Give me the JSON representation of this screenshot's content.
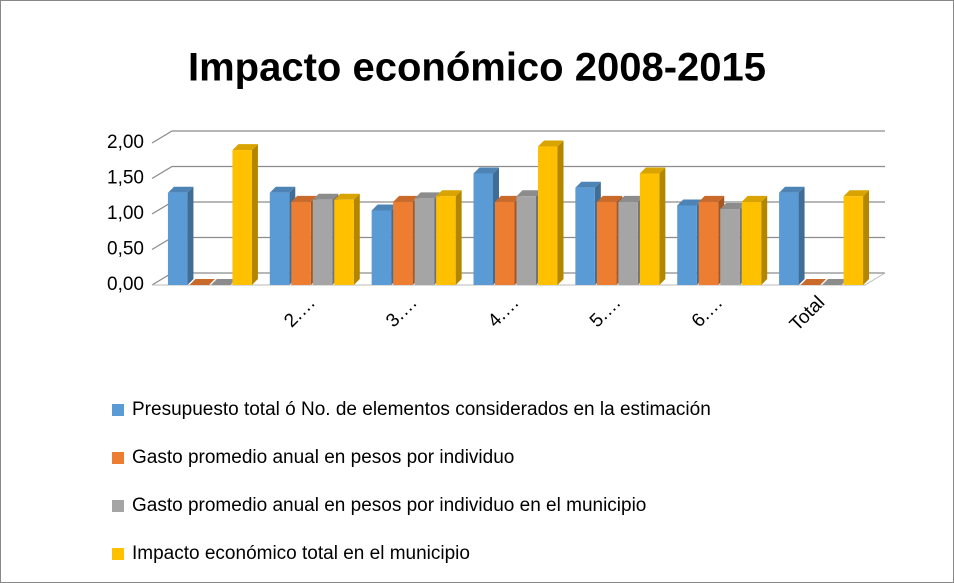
{
  "chart_data": {
    "type": "bar3d",
    "title": "Impacto económico  2008-2015",
    "categories": [
      null,
      "2.…",
      "3.…",
      "4.…",
      "5.…",
      "6.…",
      "Total"
    ],
    "series": [
      {
        "name": "Presupuesto total ó No. de elementos considerados en la estimación",
        "color": "#5b9bd5",
        "values": [
          1.3,
          1.3,
          1.05,
          1.57,
          1.37,
          1.12,
          1.3
        ]
      },
      {
        "name": "Gasto promedio anual en pesos por individuo",
        "color": "#ed7d31",
        "values": [
          0,
          1.17,
          1.17,
          1.17,
          1.17,
          1.17,
          0
        ]
      },
      {
        "name": "Gasto promedio anual en pesos por individuo en el municipio",
        "color": "#a5a5a5",
        "values": [
          0,
          1.2,
          1.22,
          1.25,
          1.17,
          1.07,
          0
        ]
      },
      {
        "name": "Impacto económico total en el municipio",
        "color": "#ffc000",
        "values": [
          1.9,
          1.2,
          1.25,
          1.95,
          1.57,
          1.17,
          1.25
        ]
      }
    ],
    "ylim": [
      0,
      2
    ],
    "yticks": [
      {
        "value": 0,
        "label": "0,00"
      },
      {
        "value": 0.5,
        "label": "0,50"
      },
      {
        "value": 1,
        "label": "1,00"
      },
      {
        "value": 1.5,
        "label": "1,50"
      },
      {
        "value": 2,
        "label": "2,00"
      }
    ],
    "grid": true,
    "legend": "bottom"
  }
}
